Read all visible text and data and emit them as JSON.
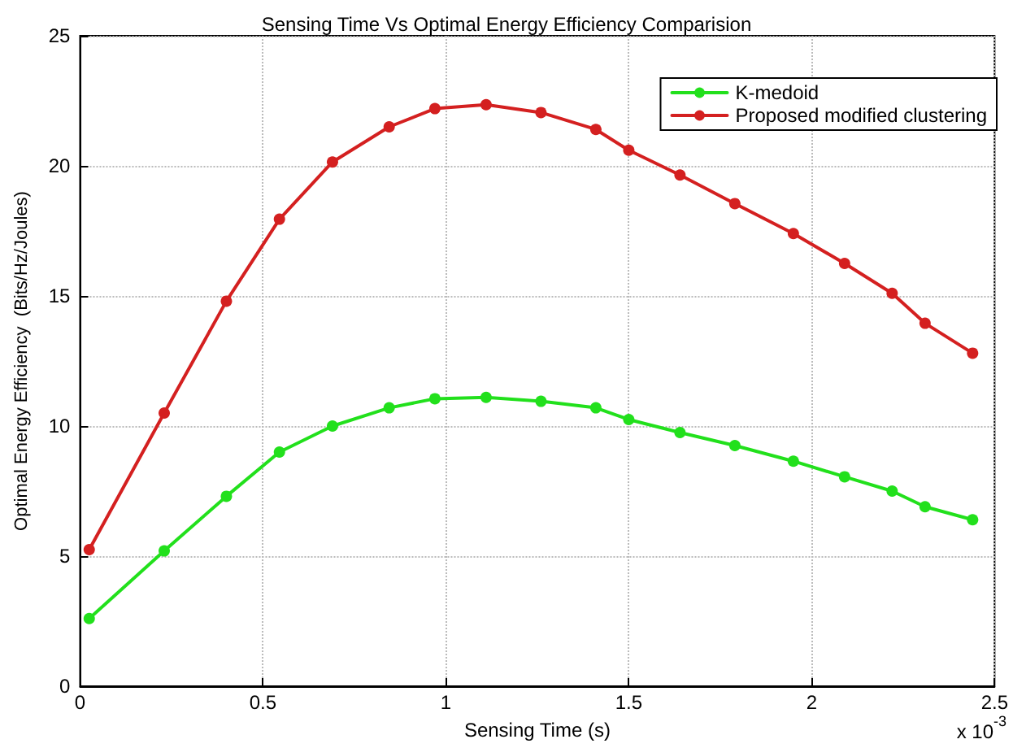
{
  "chart_data": {
    "type": "line",
    "title": "Sensing Time Vs Optimal Energy Efficiency Comparision",
    "xlabel": "Sensing Time (s)",
    "ylabel": "Optimal Energy Efficiency  (Bits/Hz/Joules)",
    "x": [
      0.025,
      0.23,
      0.4,
      0.545,
      0.69,
      0.845,
      0.97,
      1.11,
      1.26,
      1.41,
      1.5,
      1.64,
      1.79,
      1.95,
      2.09,
      2.22,
      2.31,
      2.44
    ],
    "series": [
      {
        "name": "K-medoid",
        "color": "#22e01c",
        "values": [
          2.6,
          5.2,
          7.3,
          9.0,
          10.0,
          10.7,
          11.05,
          11.1,
          10.95,
          10.7,
          10.25,
          9.75,
          9.25,
          8.65,
          8.05,
          7.5,
          6.9,
          6.4
        ]
      },
      {
        "name": "Proposed modified clustering",
        "color": "#d42020",
        "values": [
          5.25,
          10.5,
          14.8,
          17.95,
          20.15,
          21.5,
          22.2,
          22.35,
          22.05,
          21.4,
          20.6,
          19.65,
          18.55,
          17.4,
          16.25,
          15.1,
          13.95,
          12.8
        ]
      }
    ],
    "xlim": [
      0,
      2.5
    ],
    "xticks": [
      0,
      0.5,
      1,
      1.5,
      2,
      2.5
    ],
    "ylim": [
      0,
      25
    ],
    "yticks": [
      0,
      5,
      10,
      15,
      20,
      25
    ],
    "annotations": [
      "x 10$^{-3}$"
    ],
    "grid": true,
    "legend": "top right",
    "marker": "circle",
    "line_style": "solid"
  }
}
